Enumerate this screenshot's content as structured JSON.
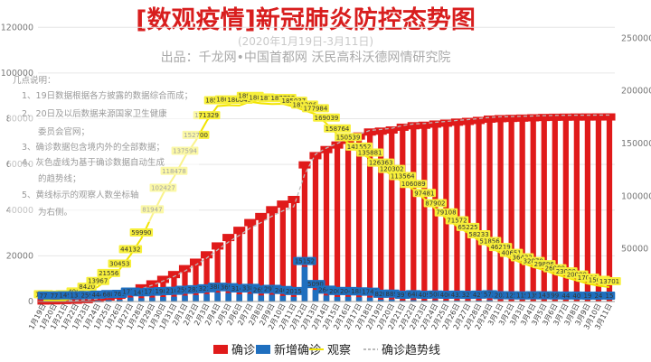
{
  "chart_data": {
    "type": "bar",
    "title": "[数观疫情]新冠肺炎防控态势图",
    "subtitle": "(2020年1月19日-3月11日)",
    "source": "出品：千龙网•中国首都网    沃民高科沃德网情研究院",
    "notes": [
      "几点说明：",
      "1、19日数据根据各方披露的数据综合而成；",
      "2、20日及以后数据来源国家卫生健康",
      "委员会官网；",
      "3、确诊数据包含境内外的全部数据；",
      "4、灰色虚线为基于确诊数据自动生成",
      "的趋势线；",
      "5、黄线标示的观察人数坐标轴",
      "为右侧。"
    ],
    "categories": [
      "1月19日",
      "1月20日",
      "1月21日",
      "1月22日",
      "1月23日",
      "1月24日",
      "1月25日",
      "1月26日",
      "1月27日",
      "1月28日",
      "1月29日",
      "1月30日",
      "1月31日",
      "2月1日",
      "2月2日",
      "2月3日",
      "2月4日",
      "2月5日",
      "2月6日",
      "2月7日",
      "2月8日",
      "2月9日",
      "2月10日",
      "2月11日",
      "2月12日",
      "2月13日",
      "2月14日",
      "2月15日",
      "2月16日",
      "2月17日",
      "2月18日",
      "2月19日",
      "2月20日",
      "2月21日",
      "2月22日",
      "2月23日",
      "2月24日",
      "2月25日",
      "2月26日",
      "2月27日",
      "2月28日",
      "2月29日",
      "3月1日",
      "3月2日",
      "3月3日",
      "3月4日",
      "3月5日",
      "3月6日",
      "3月7日",
      "3月8日",
      "3月9日",
      "3月10日",
      "3月11日"
    ],
    "series": [
      {
        "name": "确诊",
        "axis": "left",
        "color": "#e01a1a",
        "values": [
          218,
          291,
          440,
          571,
          830,
          1287,
          1975,
          2744,
          4515,
          5974,
          7711,
          9692,
          11791,
          14380,
          17205,
          20438,
          24324,
          28018,
          31161,
          34546,
          37198,
          40171,
          42638,
          44653,
          59804,
          63851,
          66492,
          68500,
          70548,
          72436,
          74185,
          74576,
          75077,
          76288,
          76936,
          77150,
          77658,
          78064,
          78497,
          78824,
          79251,
          79824,
          80026,
          80151,
          80270,
          80409,
          80552,
          80651,
          80695,
          80735,
          80754,
          80778,
          80793
        ]
      },
      {
        "name": "新增确诊",
        "axis": "left",
        "color": "#1f6fbf",
        "values": [
          77,
          77,
          149,
          131,
          259,
          444,
          688,
          769,
          1771,
          1459,
          1737,
          1981,
          2102,
          2590,
          2829,
          3235,
          3887,
          3694,
          3143,
          3385,
          2652,
          2973,
          2467,
          2015,
          15152,
          5090,
          2641,
          2009,
          2048,
          1886,
          1749,
          820,
          889,
          397,
          648,
          409,
          508,
          406,
          433,
          327,
          427,
          573,
          202,
          125,
          119,
          139,
          143,
          99,
          44,
          40,
          19,
          24,
          15
        ]
      },
      {
        "name": "观察",
        "axis": "right",
        "color": "#f2e400",
        "values": [
          1420,
          922,
          1394,
          4008,
          8420,
          13967,
          21556,
          30453,
          44132,
          59990,
          81947,
          102427,
          118478,
          137594,
          152700,
          171329,
          185555,
          186354,
          186045,
          189660,
          188183,
          187518,
          187728,
          185037,
          181386,
          177984,
          169039,
          158764,
          150539,
          141552,
          135881,
          126363,
          120302,
          113564,
          106089,
          97481,
          87902,
          79108,
          71572,
          65225,
          58233,
          51856,
          46219,
          40651,
          36432,
          32870,
          29896,
          26000,
          23000,
          20000,
          17000,
          15000,
          13701
        ]
      },
      {
        "name": "确诊趋势线",
        "axis": "left",
        "style": "dashed",
        "color": "#bbbbbb"
      }
    ],
    "yleft_ticks": [
      "0",
      "20000",
      "40000",
      "60000",
      "80000",
      "100000",
      "120000"
    ],
    "yright_ticks": [
      "50000",
      "100000",
      "150000",
      "200000",
      "250000"
    ],
    "yleft_range": [
      0,
      130000
    ],
    "yright_range": [
      0,
      282000
    ],
    "legend_position": "bottom"
  }
}
